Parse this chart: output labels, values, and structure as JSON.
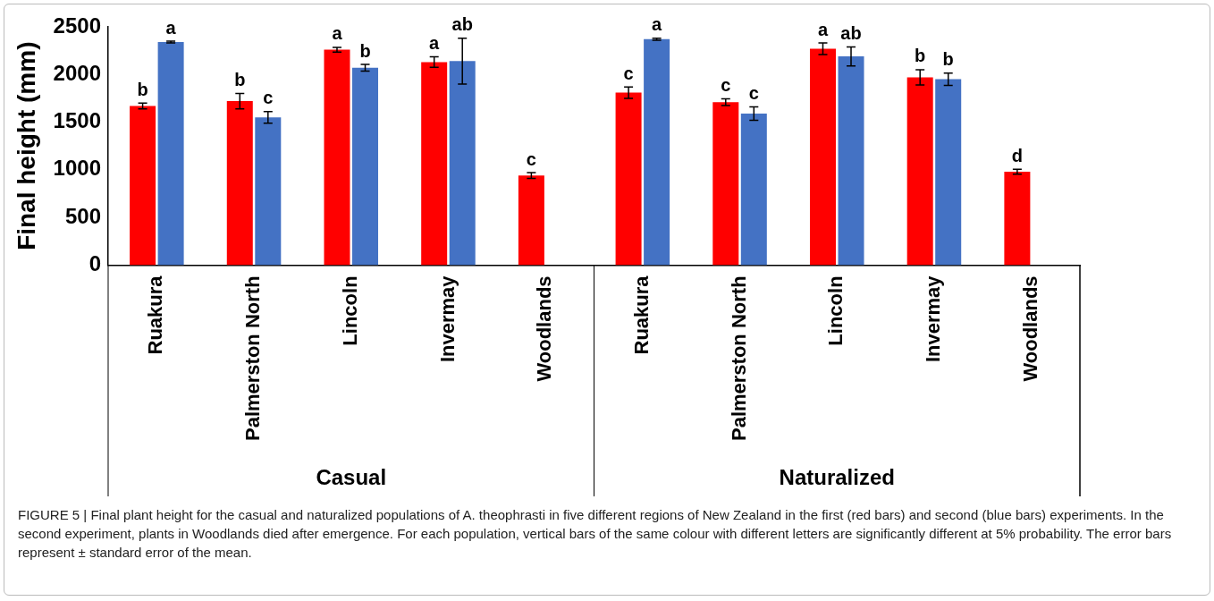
{
  "chart_data": {
    "type": "bar",
    "ylabel": "Final height (mm)",
    "categories": [
      "Ruakura",
      "Palmerston North",
      "Lincoln",
      "Invermay",
      "Woodlands",
      "Ruakura",
      "Palmerston North",
      "Lincoln",
      "Invermay",
      "Woodlands"
    ],
    "series": [
      {
        "color": "#ff0000",
        "values": [
          1670,
          1720,
          2260,
          2130,
          940,
          1810,
          1710,
          2270,
          1970,
          980
        ],
        "errors": [
          30,
          80,
          25,
          55,
          30,
          60,
          35,
          60,
          80,
          25
        ],
        "value_labels": [
          "b",
          "b",
          "a",
          "a",
          "c",
          "c",
          "c",
          "a",
          "b",
          "d"
        ]
      },
      {
        "color": "#4472c4",
        "values": [
          2340,
          1550,
          2070,
          2140,
          null,
          2370,
          1590,
          2190,
          1950,
          null
        ],
        "errors": [
          10,
          60,
          35,
          240,
          null,
          10,
          70,
          100,
          65,
          null
        ],
        "value_labels": [
          "a",
          "c",
          "b",
          "ab",
          null,
          "a",
          "c",
          "ab",
          "b",
          null
        ]
      }
    ],
    "ylim": [
      0,
      2500
    ],
    "yticks": [
      0,
      500,
      1000,
      1500,
      2000,
      2500
    ],
    "grid": false,
    "legend": false,
    "annotations": [
      "Casual",
      "Naturalized",
      "FIGURE 5 | Final plant height for the casual and naturalized populations of A. theophrasti in five different regions of New Zealand in the first (red bars) and second (blue bars) experiments. In the second experiment, plants in Woodlands died after emergence. For each population, vertical bars of the same colour with different letters are significantly different at 5% probability. The error bars represent ± standard error of the mean."
    ]
  }
}
